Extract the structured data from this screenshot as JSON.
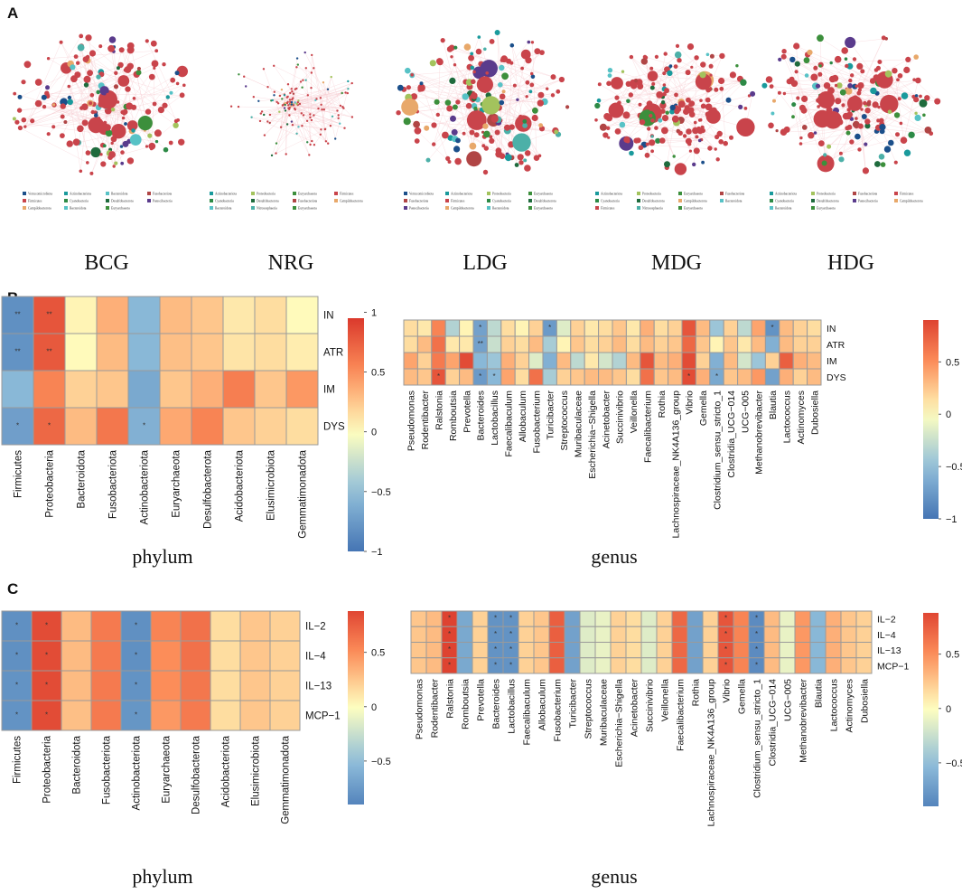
{
  "figure": {
    "panels": [
      "A",
      "B",
      "C"
    ]
  },
  "networks": {
    "groups": [
      {
        "name": "BCG",
        "legend": [
          "Verrucomicrobiota",
          "Actinobacteriota",
          "Bacteroidota",
          "Fusobacteriota",
          "Firmicutes",
          "Cyanobacteria",
          "Desulfobacterota",
          "Patescibacteria",
          "Campilobacterota",
          "Bacteroidota",
          "Euryarchaeota"
        ]
      },
      {
        "name": "NRG",
        "legend": [
          "Actinobacteriota",
          "Proteobacteria",
          "Euryarchaeota",
          "Firmicutes",
          "Cyanobacteria",
          "Desulfobacterota",
          "Fusobacteriota",
          "Campilobacterota",
          "Bacteroidota",
          "Nitrososphaeria",
          "Euryarchaeota"
        ]
      },
      {
        "name": "LDG",
        "legend": [
          "Verrucomicrobiota",
          "Actinobacteriota",
          "Proteobacteria",
          "Euryarchaeota",
          "Fusobacteriota",
          "Firmicutes",
          "Cyanobacteria",
          "Desulfobacterota",
          "Patescibacteria",
          "Campilobacterota",
          "Bacteroidota",
          "Euryarchaeota"
        ]
      },
      {
        "name": "MDG",
        "legend": [
          "Actinobacteriota",
          "Proteobacteria",
          "Euryarchaeota",
          "Fusobacteriota",
          "Cyanobacteria",
          "Desulfobacterota",
          "Campilobacterota",
          "Bacteroidota",
          "Firmicutes",
          "Nitrososphaeria",
          "Euryarchaeota"
        ]
      },
      {
        "name": "HDG",
        "legend": [
          "Actinobacteriota",
          "Proteobacteria",
          "Fusobacteriota",
          "Firmicutes",
          "Cyanobacteria",
          "Desulfobacterota",
          "Patescibacteria",
          "Campilobacterota",
          "Bacteroidota",
          "Euryarchaeota"
        ]
      }
    ],
    "phylum_colors": {
      "Firmicutes": "#c9444b",
      "Bacteroidota": "#57c2c6",
      "Proteobacteria": "#a3c35d",
      "Actinobacteriota": "#1a9a9c",
      "Desulfobacterota": "#1f6b3d",
      "Campilobacterota": "#e8a86a",
      "Verrucomicrobiota": "#1b4f8a",
      "Fusobacteriota": "#b04545",
      "Cyanobacteria": "#2d8a46",
      "Patescibacteria": "#5a3b8c",
      "Euryarchaeota": "#3c8f3c",
      "Nitrososphaeria": "#4cb0a8"
    }
  },
  "chart_data": [
    {
      "type": "heatmap",
      "panel": "B",
      "subtitle": "phylum",
      "rows": [
        "IN",
        "ATR",
        "IM",
        "DYS"
      ],
      "columns": [
        "Firmicutes",
        "Proteobacteria",
        "Bacteroidota",
        "Fusobacteriota",
        "Actinobacteriota",
        "Euryarchaeota",
        "Desulfobacterota",
        "Acidobacteriota",
        "Elusimicrobiota",
        "Gemmatimonadota"
      ],
      "values": [
        [
          -0.82,
          0.8,
          0.05,
          0.35,
          -0.55,
          0.3,
          0.25,
          0.1,
          0.15,
          0.02
        ],
        [
          -0.8,
          0.78,
          0.02,
          0.3,
          -0.55,
          0.28,
          0.25,
          0.12,
          0.15,
          0.08
        ],
        [
          -0.55,
          0.55,
          0.2,
          0.25,
          -0.65,
          0.25,
          0.35,
          0.58,
          0.25,
          0.45
        ],
        [
          -0.72,
          0.7,
          0.3,
          0.62,
          -0.6,
          0.38,
          0.55,
          0.25,
          0.2,
          0.15
        ]
      ],
      "stars": [
        [
          "**",
          "**",
          "",
          "",
          "",
          "",
          "",
          "",
          "",
          ""
        ],
        [
          "**",
          "**",
          "",
          "",
          "",
          "",
          "",
          "",
          "",
          ""
        ],
        [
          "",
          "",
          "",
          "",
          "",
          "",
          "",
          "",
          "",
          ""
        ],
        [
          "*",
          "*",
          "",
          "",
          "*",
          "",
          "",
          "",
          "",
          ""
        ]
      ],
      "colorbar": {
        "range": [
          -1,
          1
        ],
        "ticks": [
          "1",
          "0.5",
          "0",
          "−0.5",
          "−1"
        ]
      }
    },
    {
      "type": "heatmap",
      "panel": "B",
      "subtitle": "genus",
      "rows": [
        "IN",
        "ATR",
        "IM",
        "DYS"
      ],
      "columns": [
        "Pseudomonas",
        "Rodentibacter",
        "Ralstonia",
        "Romboutsia",
        "Prevotella",
        "Bacteroides",
        "Lactobacillus",
        "Faecalibaculum",
        "Allobaculum",
        "Fusobacterium",
        "Turicibacter",
        "Streptococcus",
        "Muribaculaceae",
        "Escherichia−Shigella",
        "Acinetobacter",
        "Succinivibrio",
        "Veillonella",
        "Faecalibacterium",
        "Rothia",
        "Lachnospiraceae_NK4A136_group",
        "Vibrio",
        "Gemella",
        "Clostridium_sensu_stricto_1",
        "Clostridia_UCG−014",
        "UCG−005",
        "Methanobrevibacter",
        "Blautia",
        "Lactococcus",
        "Actinomyces",
        "Dubosiella"
      ],
      "values": [
        [
          0.15,
          0.1,
          0.55,
          -0.35,
          0.05,
          -0.7,
          -0.3,
          0.15,
          0.05,
          0.2,
          -0.75,
          -0.15,
          0.2,
          0.1,
          0.15,
          0.25,
          0.1,
          0.35,
          0.15,
          0.2,
          0.8,
          0.3,
          -0.45,
          0.2,
          -0.3,
          0.4,
          -0.8,
          0.3,
          0.2,
          0.15
        ],
        [
          0.15,
          0.3,
          0.65,
          0.1,
          0.1,
          -0.7,
          -0.25,
          0.2,
          0.15,
          0.3,
          -0.4,
          0.05,
          0.25,
          0.15,
          0.2,
          0.3,
          0.15,
          0.3,
          0.2,
          0.25,
          0.7,
          0.25,
          0.05,
          0.25,
          0.1,
          0.3,
          -0.6,
          0.3,
          0.2,
          0.2
        ],
        [
          0.4,
          0.2,
          0.6,
          0.4,
          0.85,
          -0.55,
          -0.45,
          0.35,
          0.2,
          -0.15,
          -0.6,
          0.3,
          -0.3,
          0.1,
          -0.2,
          -0.35,
          0.3,
          0.8,
          0.3,
          0.35,
          0.85,
          0.2,
          -0.6,
          0.3,
          -0.2,
          -0.45,
          0.2,
          0.75,
          0.35,
          0.3
        ],
        [
          0.3,
          0.25,
          0.8,
          0.2,
          0.3,
          -0.75,
          -0.55,
          0.4,
          0.15,
          0.65,
          -0.4,
          0.2,
          0.25,
          0.3,
          0.3,
          0.25,
          0.15,
          0.65,
          0.25,
          0.3,
          0.85,
          0.35,
          -0.65,
          0.25,
          0.3,
          0.45,
          -0.7,
          0.35,
          0.2,
          0.3
        ]
      ],
      "stars": [
        [
          "",
          "",
          "",
          "",
          "",
          "*",
          "",
          "",
          "",
          "",
          "*",
          "",
          "",
          "",
          "",
          "",
          "",
          "",
          "",
          "",
          "",
          "",
          "",
          "",
          "",
          "",
          "*",
          "",
          "",
          ""
        ],
        [
          "",
          "",
          "",
          "",
          "",
          "**",
          "",
          "",
          "",
          "",
          "",
          "",
          "",
          "",
          "",
          "",
          "",
          "",
          "",
          "",
          "",
          "",
          "",
          "",
          "",
          "",
          "",
          "",
          "",
          ""
        ],
        [
          "",
          "",
          "",
          "",
          "",
          "",
          "",
          "",
          "",
          "",
          "",
          "",
          "",
          "",
          "",
          "",
          "",
          "",
          "",
          "",
          "",
          "",
          "",
          "",
          "",
          "",
          "",
          "",
          "",
          ""
        ],
        [
          "",
          "",
          "*",
          "",
          "",
          "*",
          "*",
          "",
          "",
          "",
          "",
          "",
          "",
          "",
          "",
          "",
          "",
          "",
          "",
          "",
          "*",
          "",
          "*",
          "",
          "",
          "",
          "",
          "",
          "",
          ""
        ]
      ],
      "colorbar": {
        "range": [
          -1,
          0.9
        ],
        "ticks": [
          "0.5",
          "0",
          "−0.5",
          "−1"
        ]
      }
    },
    {
      "type": "heatmap",
      "panel": "C",
      "subtitle": "phylum",
      "rows": [
        "IL−2",
        "IL−4",
        "IL−13",
        "MCP−1"
      ],
      "columns": [
        "Firmicutes",
        "Proteobacteria",
        "Bacteroidota",
        "Fusobacteriota",
        "Actinobacteriota",
        "Euryarchaeota",
        "Desulfobacterota",
        "Acidobacteriota",
        "Elusimicrobiota",
        "Gemmatimonadota"
      ],
      "values": [
        [
          -0.82,
          0.85,
          0.3,
          0.6,
          -0.82,
          0.55,
          0.65,
          0.15,
          0.25,
          0.2
        ],
        [
          -0.82,
          0.85,
          0.3,
          0.6,
          -0.82,
          0.5,
          0.65,
          0.15,
          0.25,
          0.2
        ],
        [
          -0.8,
          0.85,
          0.3,
          0.6,
          -0.8,
          0.5,
          0.62,
          0.15,
          0.25,
          0.2
        ],
        [
          -0.8,
          0.85,
          0.28,
          0.6,
          -0.78,
          0.45,
          0.6,
          0.15,
          0.25,
          0.2
        ]
      ],
      "stars": [
        [
          "*",
          "*",
          "",
          "",
          "*",
          "",
          "",
          "",
          "",
          ""
        ],
        [
          "*",
          "*",
          "",
          "",
          "*",
          "",
          "",
          "",
          "",
          ""
        ],
        [
          "*",
          "*",
          "",
          "",
          "*",
          "",
          "",
          "",
          "",
          ""
        ],
        [
          "*",
          "*",
          "",
          "",
          "*",
          "",
          "",
          "",
          "",
          ""
        ]
      ],
      "colorbar": {
        "range": [
          -0.9,
          0.9
        ],
        "ticks": [
          "0.5",
          "0",
          "−0.5"
        ]
      }
    },
    {
      "type": "heatmap",
      "panel": "C",
      "subtitle": "genus",
      "rows": [
        "IL−2",
        "IL−4",
        "IL−13",
        "MCP−1"
      ],
      "columns": [
        "Pseudomonas",
        "Rodentibacter",
        "Ralstonia",
        "Romboutsia",
        "Prevotella",
        "Bacteroides",
        "Lactobacillus",
        "Faecalibaculum",
        "Allobaculum",
        "Fusobacterium",
        "Turicibacter",
        "Streptococcus",
        "Muribaculaceae",
        "Escherichia−Shigella",
        "Acinetobacter",
        "Succinivibrio",
        "Veillonella",
        "Faecalibacterium",
        "Rothia",
        "Lachnospiraceae_NK4A136_group",
        "Vibrio",
        "Gemella",
        "Clostridium_sensu_stricto_1",
        "Clostridia_UCG−014",
        "UCG−005",
        "Methanobrevibacter",
        "Blautia",
        "Lactococcus",
        "Actinomyces",
        "Dubosiella"
      ],
      "values": [
        [
          0.25,
          0.3,
          0.9,
          -0.65,
          0.2,
          -0.8,
          -0.8,
          0.2,
          0.25,
          0.75,
          -0.7,
          -0.15,
          -0.1,
          0.2,
          0.15,
          -0.15,
          0.2,
          0.7,
          -0.7,
          0.2,
          0.8,
          0.55,
          -0.85,
          0.3,
          -0.1,
          0.45,
          -0.55,
          0.35,
          0.25,
          0.2
        ],
        [
          0.25,
          0.3,
          0.9,
          -0.65,
          0.2,
          -0.8,
          -0.8,
          0.2,
          0.25,
          0.75,
          -0.7,
          -0.15,
          -0.1,
          0.2,
          0.15,
          -0.15,
          0.2,
          0.7,
          -0.7,
          0.2,
          0.8,
          0.55,
          -0.85,
          0.3,
          -0.1,
          0.45,
          -0.55,
          0.35,
          0.25,
          0.2
        ],
        [
          0.25,
          0.3,
          0.9,
          -0.65,
          0.2,
          -0.8,
          -0.8,
          0.2,
          0.25,
          0.75,
          -0.7,
          -0.15,
          -0.1,
          0.2,
          0.15,
          -0.15,
          0.2,
          0.7,
          -0.7,
          0.2,
          0.8,
          0.55,
          -0.85,
          0.3,
          -0.1,
          0.45,
          -0.55,
          0.35,
          0.25,
          0.2
        ],
        [
          0.25,
          0.3,
          0.9,
          -0.65,
          0.2,
          -0.8,
          -0.8,
          0.2,
          0.25,
          0.75,
          -0.7,
          -0.15,
          -0.1,
          0.2,
          0.15,
          -0.15,
          0.2,
          0.7,
          -0.7,
          0.2,
          0.8,
          0.55,
          -0.85,
          0.3,
          -0.1,
          0.45,
          -0.55,
          0.35,
          0.25,
          0.2
        ]
      ],
      "stars": [
        [
          "",
          "",
          "*",
          "",
          "",
          "*",
          "*",
          "",
          "",
          "",
          "",
          "",
          "",
          "",
          "",
          "",
          "",
          "",
          "",
          "",
          "*",
          "",
          "*",
          "",
          "",
          "",
          "",
          "",
          "",
          ""
        ],
        [
          "",
          "",
          "*",
          "",
          "",
          "*",
          "*",
          "",
          "",
          "",
          "",
          "",
          "",
          "",
          "",
          "",
          "",
          "",
          "",
          "",
          "*",
          "",
          "*",
          "",
          "",
          "",
          "",
          "",
          "",
          ""
        ],
        [
          "",
          "",
          "*",
          "",
          "",
          "*",
          "*",
          "",
          "",
          "",
          "",
          "",
          "",
          "",
          "",
          "",
          "",
          "",
          "",
          "",
          "*",
          "",
          "*",
          "",
          "",
          "",
          "",
          "",
          "",
          ""
        ],
        [
          "",
          "",
          "*",
          "",
          "",
          "*",
          "*",
          "",
          "",
          "",
          "",
          "",
          "",
          "",
          "",
          "",
          "",
          "",
          "",
          "",
          "*",
          "",
          "*",
          "",
          "",
          "",
          "",
          "",
          "",
          ""
        ]
      ],
      "colorbar": {
        "range": [
          -0.9,
          0.9
        ],
        "ticks": [
          "0.5",
          "0",
          "−0.5"
        ]
      }
    }
  ]
}
